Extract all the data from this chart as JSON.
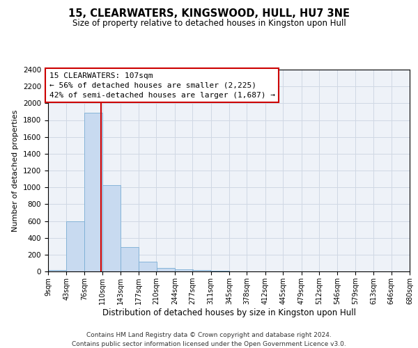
{
  "title": "15, CLEARWATERS, KINGSWOOD, HULL, HU7 3NE",
  "subtitle": "Size of property relative to detached houses in Kingston upon Hull",
  "xlabel_bottom": "Distribution of detached houses by size in Kingston upon Hull",
  "ylabel": "Number of detached properties",
  "footnote1": "Contains HM Land Registry data © Crown copyright and database right 2024.",
  "footnote2": "Contains public sector information licensed under the Open Government Licence v3.0.",
  "annotation_line1": "15 CLEARWATERS: 107sqm",
  "annotation_line2": "← 56% of detached houses are smaller (2,225)",
  "annotation_line3": "42% of semi-detached houses are larger (1,687) →",
  "property_size": 107,
  "bin_edges": [
    9,
    43,
    76,
    110,
    143,
    177,
    210,
    244,
    277,
    311,
    345,
    378,
    412,
    445,
    479,
    512,
    546,
    579,
    613,
    646,
    680
  ],
  "bar_heights": [
    15,
    600,
    1890,
    1030,
    290,
    115,
    40,
    25,
    15,
    5,
    2,
    1,
    0,
    0,
    0,
    0,
    0,
    0,
    0,
    0
  ],
  "bar_color": "#c8daf0",
  "bar_edge_color": "#7aadd4",
  "vline_color": "#cc0000",
  "grid_color": "#d0d8e4",
  "background_color": "#eef2f8",
  "ylim": [
    0,
    2400
  ],
  "yticks": [
    0,
    200,
    400,
    600,
    800,
    1000,
    1200,
    1400,
    1600,
    1800,
    2000,
    2200,
    2400
  ]
}
